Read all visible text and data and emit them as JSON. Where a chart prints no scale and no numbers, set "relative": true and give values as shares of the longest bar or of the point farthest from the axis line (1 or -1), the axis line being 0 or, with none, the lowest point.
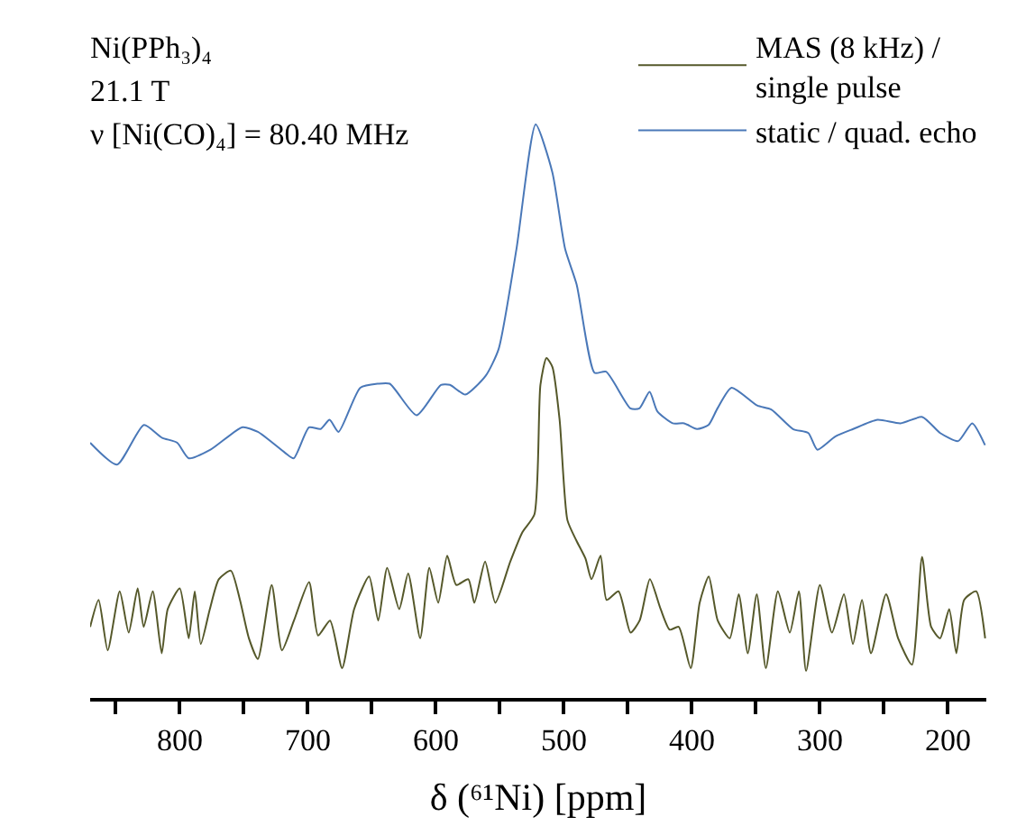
{
  "chart_data": {
    "type": "line",
    "relative": true,
    "xlabel": "δ (⁶¹Ni) [ppm]",
    "annotations": [
      "Ni(PPh₃)₄",
      "21.1 T",
      "ν [Ni(CO)₄] = 80.40 MHz"
    ],
    "xlim": [
      870,
      170
    ],
    "xticks": [
      {
        "value": 850,
        "label": null
      },
      800,
      {
        "value": 750,
        "label": null
      },
      700,
      {
        "value": 650,
        "label": null
      },
      600,
      {
        "value": 550,
        "label": null
      },
      500,
      {
        "value": 450,
        "label": null
      },
      400,
      {
        "value": 350,
        "label": null
      },
      300,
      {
        "value": 250,
        "label": null
      },
      200
    ],
    "legend": "top right",
    "marker": "none",
    "line_style": "solid",
    "series": [
      {
        "name": "MAS (8 kHz) / single pulse",
        "color": "#55582a",
        "x": [
          870,
          863.4,
          856.3,
          846.9,
          839.9,
          832.9,
          828.2,
          821.1,
          814.1,
          809.4,
          800,
          793,
          788.3,
          783.6,
          776.5,
          769.5,
          760.1,
          753,
          746,
          739,
          728.2,
          720.2,
          710.8,
          699,
          692,
          682.6,
          673.2,
          663.8,
          652.1,
          645,
          638,
          628.6,
          621.6,
          612.2,
          605.1,
          598.1,
          591.1,
          584,
          574.6,
          569.9,
          561.5,
          553.5,
          541.8,
          532.4,
          523,
          518.3,
          513.6,
          508.9,
          503.3,
          497.2,
          490.1,
          483.1,
          478.4,
          471.3,
          466.6,
          457.3,
          447.9,
          440.8,
          432.8,
          424.4,
          417.3,
          410.3,
          400.9,
          393.9,
          386.8,
          379.8,
          370.4,
          363.4,
          356.3,
          349.3,
          342.2,
          332.8,
          323.5,
          316.4,
          310.8,
          300,
          290.6,
          281.2,
          274.2,
          267.1,
          260.1,
          248.3,
          238.9,
          228.1,
          220.2,
          213.1,
          206.1,
          199,
          193.4,
          187.3,
          177.9,
          170.9
        ],
        "values": [
          0.124,
          0.171,
          0.083,
          0.186,
          0.114,
          0.191,
          0.124,
          0.186,
          0.078,
          0.155,
          0.191,
          0.104,
          0.186,
          0.094,
          0.155,
          0.207,
          0.222,
          0.171,
          0.104,
          0.068,
          0.197,
          0.083,
          0.135,
          0.202,
          0.109,
          0.135,
          0.052,
          0.155,
          0.212,
          0.135,
          0.227,
          0.155,
          0.217,
          0.104,
          0.227,
          0.166,
          0.248,
          0.197,
          0.207,
          0.166,
          0.238,
          0.166,
          0.238,
          0.289,
          0.32,
          0.546,
          0.593,
          0.577,
          0.485,
          0.31,
          0.274,
          0.243,
          0.207,
          0.248,
          0.171,
          0.186,
          0.114,
          0.135,
          0.207,
          0.155,
          0.119,
          0.124,
          0.052,
          0.166,
          0.212,
          0.135,
          0.104,
          0.181,
          0.078,
          0.181,
          0.052,
          0.186,
          0.114,
          0.186,
          0.047,
          0.197,
          0.114,
          0.181,
          0.094,
          0.171,
          0.078,
          0.181,
          0.104,
          0.058,
          0.246,
          0.124,
          0.104,
          0.155,
          0.078,
          0.171,
          0.186,
          0.104
        ]
      },
      {
        "name": "static / quad. echo",
        "color": "#4a78b8",
        "x": [
          870,
          849,
          828,
          814,
          802,
          793,
          776,
          751,
          739,
          718,
          711,
          699,
          690,
          683,
          676,
          659,
          645,
          636,
          615,
          596,
          589,
          577,
          561,
          551,
          537,
          522,
          509,
          499,
          490,
          476,
          467,
          448,
          441,
          433,
          427,
          415,
          406,
          396,
          387,
          380,
          369,
          349,
          338,
          321,
          309,
          302,
          288,
          274,
          255,
          237,
          220,
          206,
          192,
          181,
          171
        ],
        "values": [
          0.445,
          0.407,
          0.476,
          0.454,
          0.445,
          0.418,
          0.433,
          0.472,
          0.464,
          0.428,
          0.418,
          0.472,
          0.469,
          0.485,
          0.464,
          0.541,
          0.548,
          0.548,
          0.493,
          0.546,
          0.546,
          0.529,
          0.562,
          0.608,
          0.783,
          1,
          0.917,
          0.783,
          0.721,
          0.567,
          0.569,
          0.505,
          0.505,
          0.534,
          0.5,
          0.479,
          0.479,
          0.469,
          0.476,
          0.505,
          0.541,
          0.51,
          0.503,
          0.469,
          0.462,
          0.433,
          0.456,
          0.469,
          0.485,
          0.479,
          0.49,
          0.462,
          0.448,
          0.479,
          0.441
        ]
      }
    ]
  }
}
